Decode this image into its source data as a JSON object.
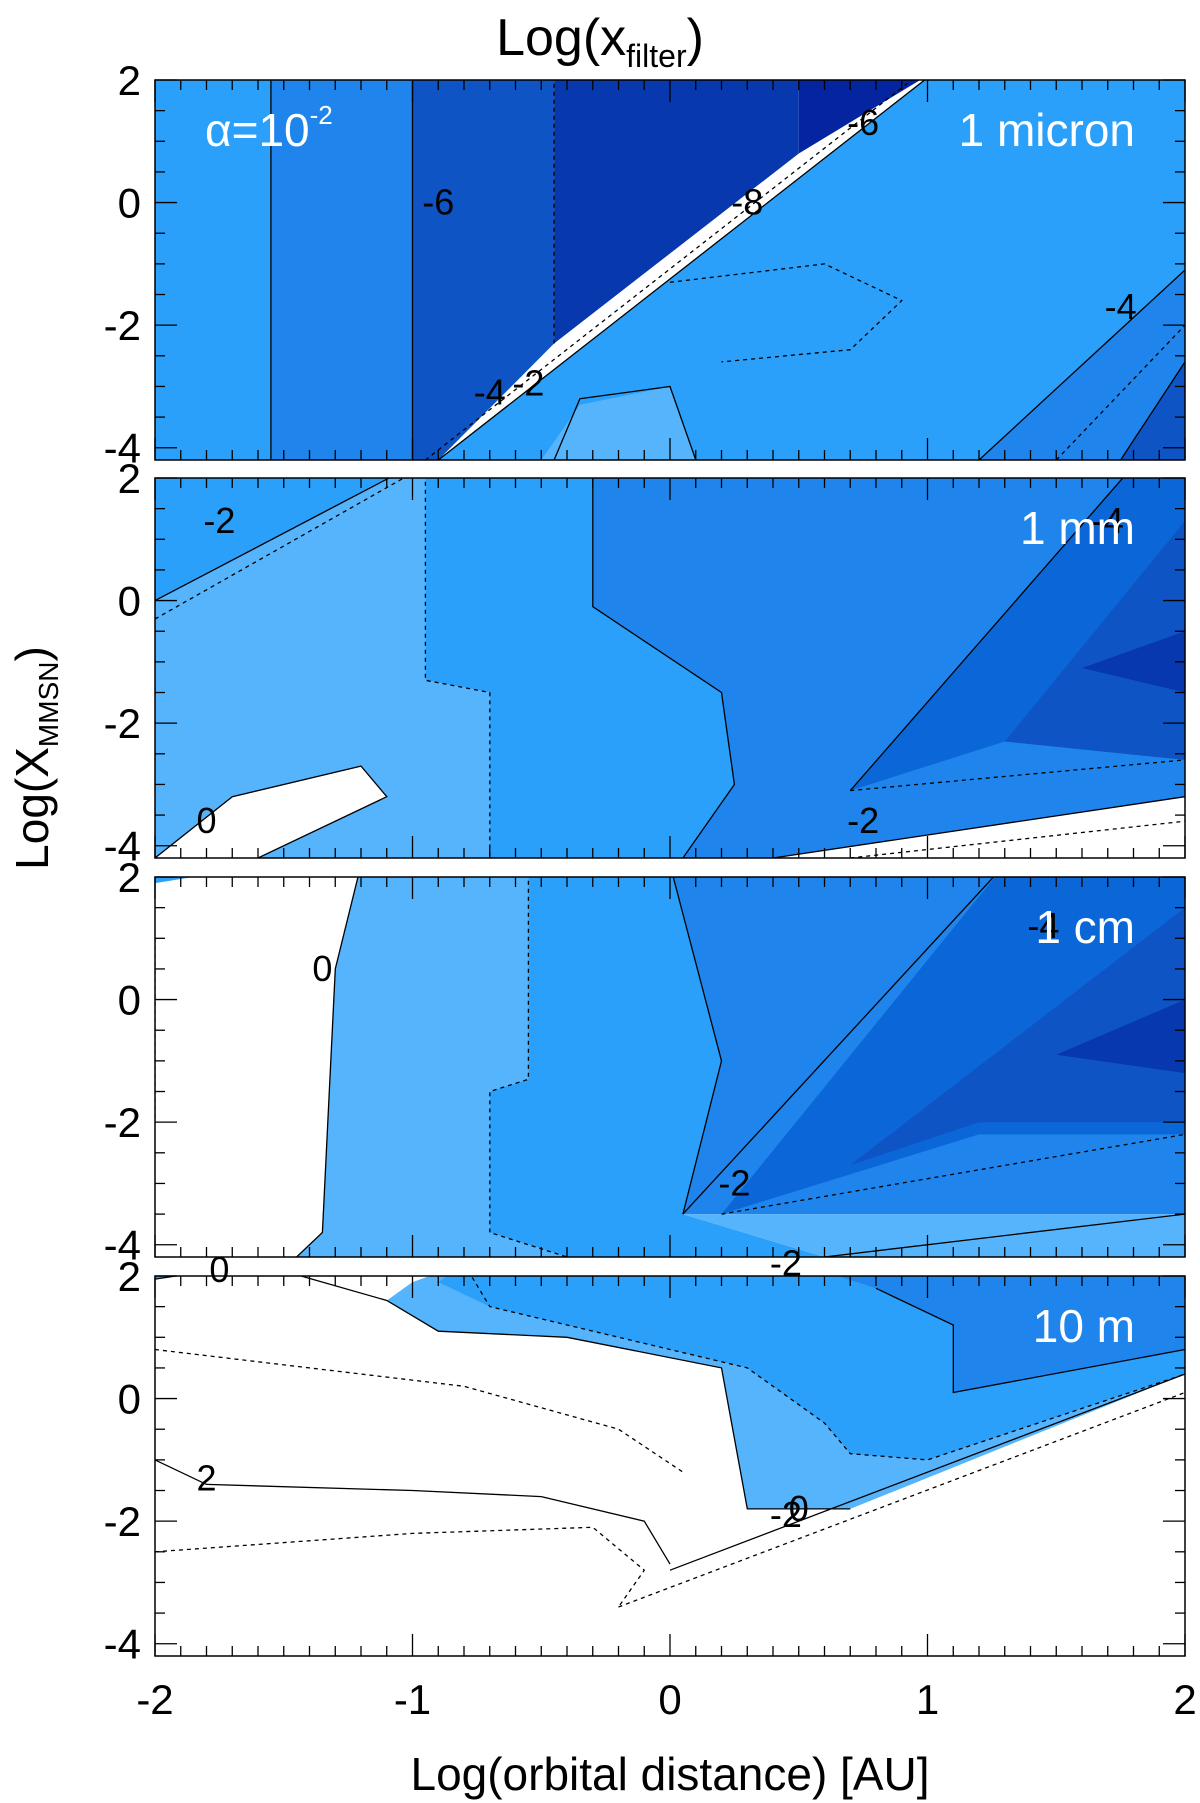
{
  "chart_data": {
    "type": "contour",
    "title": "Log(x",
    "title_sub": "filter",
    "title_close": ")",
    "xlabel": "Log(orbital distance) [AU]",
    "ylabel": "Log(X",
    "ylabel_sub": "MMSN",
    "ylabel_close": ")",
    "xlim": [
      -2,
      2
    ],
    "ylim": [
      -4.2,
      2.0
    ],
    "x_ticks": [
      -2,
      -1,
      0,
      1,
      2
    ],
    "x_tick_labels": [
      "-2",
      "-1",
      "0",
      "1",
      "2"
    ],
    "y_ticks": [
      2,
      0,
      -2,
      -4
    ],
    "y_tick_labels": [
      "2",
      "0",
      "-2",
      "-4"
    ],
    "colors": {
      "white": "#ffffff",
      "level_1": "#56b4fc",
      "level_2": "#2aa0fb",
      "level_3": "#1f85ec",
      "level_4": "#0b66d8",
      "level_5": "#0f54c5",
      "level_6": "#0838ad",
      "level_7": "#0424a0"
    },
    "panels": [
      {
        "label": "1 micron",
        "annotation": "α=10",
        "annotation_sup": "-2",
        "contour_labels": [
          {
            "text": "-6",
            "x": -0.9,
            "y": 0.0
          },
          {
            "text": "-8",
            "x": 0.3,
            "y": 0.0
          },
          {
            "text": "-6",
            "x": 0.75,
            "y": 1.3
          },
          {
            "text": "-4",
            "x": 1.75,
            "y": -1.7
          },
          {
            "text": "-4",
            "x": -0.7,
            "y": -3.1
          },
          {
            "text": "-2",
            "x": -0.55,
            "y": -2.95
          }
        ]
      },
      {
        "label": "1 mm",
        "contour_labels": [
          {
            "text": "-2",
            "x": -1.75,
            "y": 1.3
          },
          {
            "text": "-4",
            "x": 1.7,
            "y": 1.3
          },
          {
            "text": "0",
            "x": -1.8,
            "y": -3.6
          },
          {
            "text": "-2",
            "x": 0.75,
            "y": -3.6
          }
        ]
      },
      {
        "label": "1 cm",
        "contour_labels": [
          {
            "text": "-4",
            "x": 1.45,
            "y": 1.2
          },
          {
            "text": "0",
            "x": -1.35,
            "y": 0.5
          },
          {
            "text": "-2",
            "x": 0.25,
            "y": -3.0
          }
        ]
      },
      {
        "label": "10 m",
        "contour_labels": [
          {
            "text": "0",
            "x": -1.75,
            "y": 2.1
          },
          {
            "text": "-2",
            "x": 0.45,
            "y": 2.2
          },
          {
            "text": "2",
            "x": -1.8,
            "y": -1.3
          },
          {
            "text": "-2",
            "x": 0.45,
            "y": -1.9
          },
          {
            "text": "0",
            "x": 0.5,
            "y": -1.8
          }
        ]
      }
    ]
  }
}
